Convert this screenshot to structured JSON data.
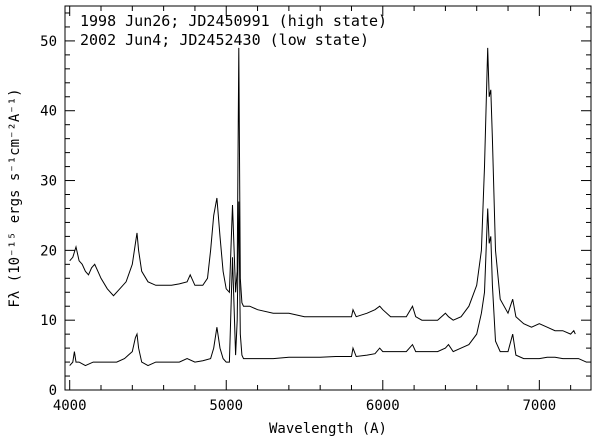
{
  "chart_data": {
    "type": "line",
    "title": "",
    "xlabel": "Wavelength (A)",
    "ylabel": "Fλ (10⁻¹⁵ ergs s⁻¹cm⁻²A⁻¹)",
    "xlim": [
      3970,
      7330
    ],
    "ylim": [
      0,
      55
    ],
    "x_ticks": [
      4000,
      5000,
      6000,
      7000
    ],
    "y_ticks": [
      0,
      10,
      20,
      30,
      40,
      50
    ],
    "grid": false,
    "legend_position": "top-left",
    "annotations": [
      "1998 Jun26; JD2450991 (high state)",
      "2002 Jun4; JD2452430 (low state)"
    ],
    "series": [
      {
        "x": [
          4000,
          4020,
          4040,
          4060,
          4080,
          4100,
          4120,
          4140,
          4160,
          4180,
          4200,
          4240,
          4280,
          4320,
          4360,
          4400,
          4420,
          4430,
          4440,
          4460,
          4500,
          4550,
          4600,
          4650,
          4700,
          4750,
          4770,
          4800,
          4850,
          4880,
          4900,
          4920,
          4940,
          4960,
          4980,
          5000,
          5020,
          5040,
          5060,
          5070,
          5080,
          5090,
          5100,
          5110,
          5150,
          5200,
          5300,
          5400,
          5500,
          5600,
          5700,
          5800,
          5810,
          5830,
          5900,
          5950,
          5980,
          6000,
          6050,
          6100,
          6150,
          6190,
          6210,
          6250,
          6300,
          6350,
          6400,
          6420,
          6450,
          6500,
          6550,
          6600,
          6630,
          6650,
          6670,
          6680,
          6690,
          6700,
          6720,
          6750,
          6800,
          6830,
          6850,
          6900,
          6950,
          7000,
          7050,
          7100,
          7150,
          7200,
          7220,
          7230
        ],
        "values": [
          18.5,
          19,
          20.5,
          18.5,
          18,
          17,
          16.5,
          17.5,
          18,
          17,
          16,
          14.5,
          13.5,
          14.5,
          15.5,
          18,
          21,
          22.5,
          20,
          17,
          15.5,
          15,
          15,
          15,
          15.2,
          15.5,
          16.5,
          15,
          15,
          16,
          20,
          25,
          27.5,
          22,
          17,
          14.5,
          14,
          26.5,
          14,
          17,
          49,
          16,
          12.5,
          12,
          12,
          11.5,
          11,
          11,
          10.5,
          10.5,
          10.5,
          10.5,
          11.5,
          10.5,
          11,
          11.5,
          12,
          11.5,
          10.5,
          10.5,
          10.5,
          12,
          10.5,
          10,
          10,
          10,
          11,
          10.5,
          10,
          10.5,
          12,
          15,
          20,
          32,
          49,
          42,
          43,
          36,
          20,
          13,
          11,
          13,
          10.5,
          9.5,
          9,
          9.5,
          9,
          8.5,
          8.5,
          8,
          8.5,
          8
        ]
      },
      {
        "x": [
          4000,
          4020,
          4030,
          4040,
          4060,
          4100,
          4150,
          4200,
          4250,
          4300,
          4350,
          4400,
          4420,
          4430,
          4440,
          4460,
          4500,
          4550,
          4600,
          4650,
          4700,
          4750,
          4800,
          4850,
          4900,
          4920,
          4940,
          4960,
          4980,
          5000,
          5020,
          5040,
          5060,
          5070,
          5080,
          5090,
          5100,
          5110,
          5150,
          5200,
          5300,
          5400,
          5500,
          5600,
          5700,
          5800,
          5810,
          5830,
          5900,
          5950,
          5980,
          6000,
          6050,
          6100,
          6150,
          6190,
          6210,
          6250,
          6300,
          6350,
          6400,
          6420,
          6450,
          6500,
          6550,
          6600,
          6630,
          6650,
          6670,
          6680,
          6690,
          6700,
          6720,
          6750,
          6800,
          6830,
          6850,
          6900,
          6950,
          7000,
          7050,
          7100,
          7150,
          7200,
          7250,
          7300
        ],
        "values": [
          3.5,
          4,
          5.5,
          4,
          4,
          3.5,
          4,
          4,
          4,
          4,
          4.5,
          5.5,
          7.5,
          8,
          6,
          4,
          3.5,
          4,
          4,
          4,
          4,
          4.5,
          4,
          4.2,
          4.5,
          6,
          9,
          6,
          4.5,
          4,
          4,
          19,
          5,
          10,
          27,
          8,
          5,
          4.5,
          4.5,
          4.5,
          4.5,
          4.7,
          4.7,
          4.7,
          4.8,
          4.8,
          6,
          4.8,
          5,
          5.2,
          6,
          5.5,
          5.5,
          5.5,
          5.5,
          6.5,
          5.5,
          5.5,
          5.5,
          5.5,
          6,
          6.5,
          5.5,
          6,
          6.5,
          8,
          11,
          14,
          26,
          21,
          22,
          15,
          7,
          5.5,
          5.5,
          8,
          5,
          4.5,
          4.5,
          4.5,
          4.7,
          4.7,
          4.5,
          4.5,
          4.5,
          4
        ]
      }
    ]
  }
}
